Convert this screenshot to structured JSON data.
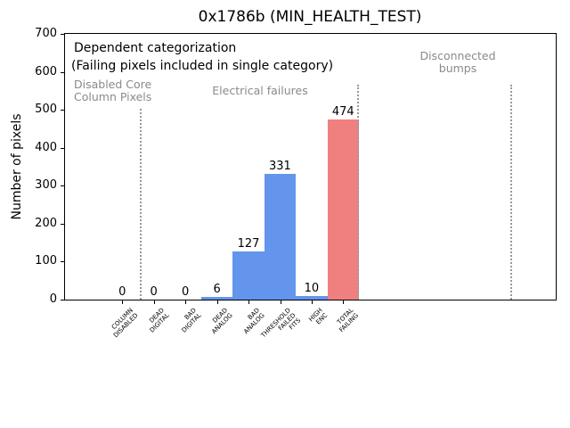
{
  "chart_data": {
    "type": "bar",
    "title": "0x1786b (MIN_HEALTH_TEST)",
    "ylabel": "Number of pixels",
    "xlabel": "",
    "categories": [
      "COLUMN\nDISABLED",
      "DEAD\nDIGITAL",
      "BAD\nDIGITAL",
      "DEAD\nANALOG",
      "BAD\nANALOG",
      "THRESHOLD\nFAILED\nFITS",
      "HIGH\nENC",
      "TOTAL\nFAILING"
    ],
    "values": [
      0,
      0,
      0,
      6,
      127,
      331,
      10,
      474
    ],
    "bar_colors": [
      "#6495ed",
      "#6495ed",
      "#6495ed",
      "#6495ed",
      "#6495ed",
      "#6495ed",
      "#6495ed",
      "#f08080"
    ],
    "ylim": [
      0,
      700
    ],
    "yticks": [
      0,
      100,
      200,
      300,
      400,
      500,
      600,
      700
    ],
    "grid": false,
    "legend": null,
    "annotations": [
      {
        "name": "note-dependent-categorization",
        "text": "Dependent categorization",
        "color": "#000000",
        "size": 14,
        "align": "left",
        "x": 10,
        "y": 8
      },
      {
        "name": "note-failing-pixels",
        "text": "(Failing pixels included in single category)",
        "color": "#000000",
        "size": 14,
        "align": "left",
        "x": 7,
        "y": 28
      },
      {
        "name": "label-disabled-core-column-pixels",
        "text": "Disabled Core\nColumn Pixels",
        "color": "#8a8a8a",
        "size": 12.5,
        "align": "left",
        "x": 10,
        "y": 50
      },
      {
        "name": "label-electrical-failures",
        "text": "Electrical failures",
        "color": "#8a8a8a",
        "size": 12.5,
        "align": "center",
        "x": 219,
        "y": 57
      },
      {
        "name": "label-disconnected-bumps",
        "text": "Disconnected\nbumps",
        "color": "#8a8a8a",
        "size": 12.5,
        "align": "center",
        "x": 441,
        "y": 18
      }
    ],
    "separators": [
      {
        "name": "separator-disabled-core",
        "x": 84,
        "top": 84
      },
      {
        "name": "separator-electrical",
        "x": 328,
        "top": 57
      },
      {
        "name": "separator-disconnected",
        "x": 500,
        "top": 57
      }
    ],
    "separator_color": "#999999"
  }
}
